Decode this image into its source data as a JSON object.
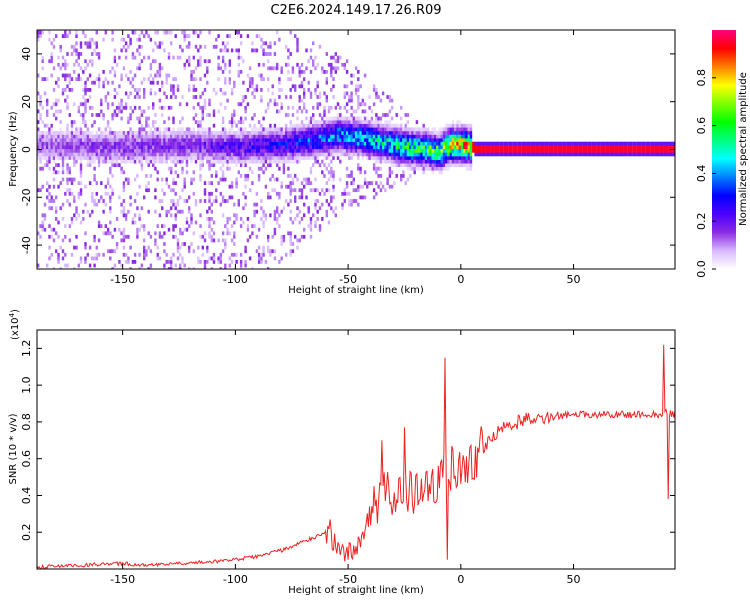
{
  "chart_data": [
    {
      "type": "heatmap",
      "title": "C2E6.2024.149.17.26.R09",
      "xlabel": "Height of straight line (km)",
      "ylabel": "Frequency (Hz)",
      "xlim": [
        -188,
        95
      ],
      "ylim": [
        -50,
        50
      ],
      "xticks": [
        -150,
        -100,
        -50,
        0,
        50
      ],
      "yticks": [
        -40,
        -20,
        0,
        20,
        40
      ],
      "colorbar": {
        "label": "Normalized spectral amplitude",
        "range": [
          0,
          1
        ],
        "ticks": [
          "0.0",
          "0.2",
          "0.4",
          "0.6",
          "0.8"
        ],
        "colors": [
          "#ffffff",
          "#d8b8ff",
          "#8a2be2",
          "#4b00ff",
          "#0000ff",
          "#0080ff",
          "#00ffff",
          "#00ff80",
          "#00ff00",
          "#80ff00",
          "#ffff00",
          "#ff8000",
          "#ff0000",
          "#ff0080"
        ]
      },
      "ridge_frequency_profile": {
        "height_km": [
          -188,
          -150,
          -120,
          -100,
          -80,
          -65,
          -55,
          -45,
          -35,
          -25,
          -15,
          -10,
          -5,
          0,
          5,
          10,
          50,
          95
        ],
        "frequency_hz": [
          2,
          1,
          2,
          1,
          2,
          4,
          6,
          5,
          3,
          1,
          0,
          -1,
          2,
          2,
          1,
          0,
          0,
          0
        ],
        "peak_amplitude": [
          0.15,
          0.18,
          0.2,
          0.25,
          0.3,
          0.4,
          0.45,
          0.5,
          0.55,
          0.6,
          0.65,
          0.7,
          0.8,
          0.85,
          0.92,
          0.95,
          0.95,
          0.95
        ]
      }
    },
    {
      "type": "line",
      "xlabel": "Height of straight line (km)",
      "ylabel": "SNR (10 * v/v)",
      "yscale_label": "(x10",
      "yscale_exp": "4",
      "yscale_close": ")",
      "xlim": [
        -188,
        95
      ],
      "ylim": [
        0,
        1.3
      ],
      "xticks": [
        -150,
        -100,
        -50,
        0,
        50
      ],
      "yticks": [
        0.2,
        0.4,
        0.6,
        0.8,
        1.0,
        1.2
      ],
      "ytick_labels": [
        "0.2",
        "0.4",
        "0.6",
        "0.8",
        "1.0",
        "1.2"
      ],
      "line_color": "#ee2222",
      "series": [
        {
          "name": "SNR",
          "x": [
            -188,
            -170,
            -150,
            -140,
            -130,
            -110,
            -100,
            -90,
            -80,
            -75,
            -70,
            -65,
            -60,
            -55,
            -50,
            -45,
            -40,
            -35,
            -30,
            -25,
            -20,
            -15,
            -10,
            -5,
            0,
            5,
            10,
            15,
            20,
            25,
            30,
            40,
            50,
            60,
            70,
            80,
            85,
            88,
            90,
            92,
            95
          ],
          "y": [
            0.01,
            0.02,
            0.03,
            0.02,
            0.03,
            0.04,
            0.05,
            0.07,
            0.1,
            0.12,
            0.15,
            0.17,
            0.2,
            0.13,
            0.08,
            0.15,
            0.3,
            0.4,
            0.4,
            0.42,
            0.4,
            0.45,
            0.5,
            0.55,
            0.55,
            0.6,
            0.67,
            0.73,
            0.77,
            0.8,
            0.82,
            0.83,
            0.84,
            0.84,
            0.84,
            0.84,
            0.84,
            0.84,
            0.85,
            0.85,
            0.84
          ]
        }
      ],
      "spikes": [
        {
          "x": -58,
          "y": 0.27
        },
        {
          "x": -35,
          "y": 0.7
        },
        {
          "x": -25,
          "y": 0.77
        },
        {
          "x": -7,
          "y": 1.15
        },
        {
          "x": -6,
          "y": 0.05
        },
        {
          "x": 90,
          "y": 1.22
        },
        {
          "x": 92,
          "y": 0.38
        }
      ]
    }
  ]
}
